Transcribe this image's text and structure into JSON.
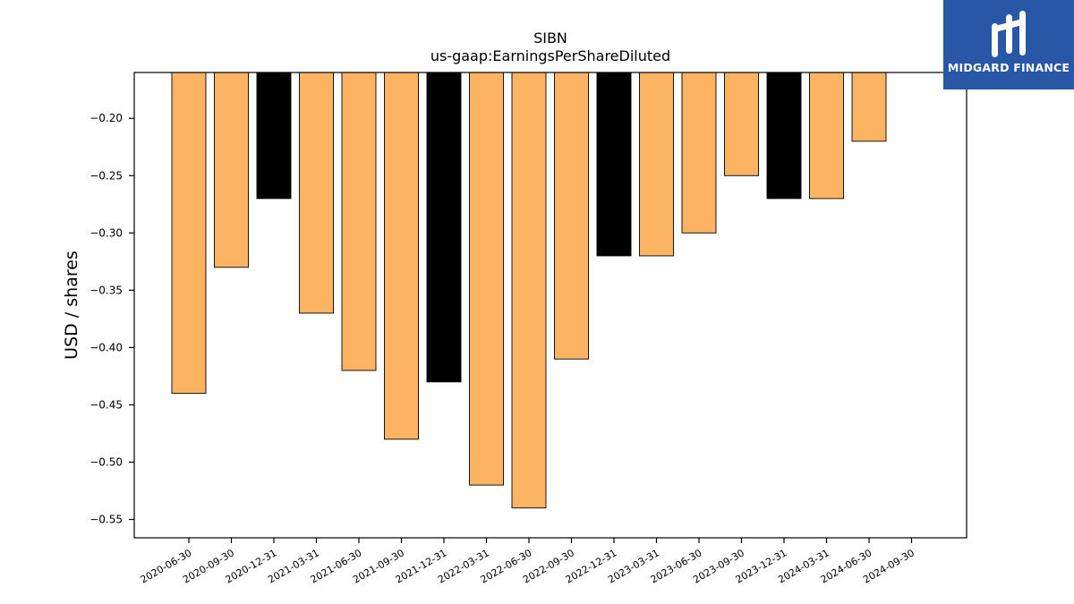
{
  "logo": {
    "text": "MIDGARD FINANCE",
    "color": "#2857a7"
  },
  "chart_data": {
    "type": "bar",
    "title": "SIBN",
    "subtitle": "us-gaap:EarningsPerShareDiluted",
    "xlabel": "",
    "ylabel": "USD / shares",
    "categories": [
      "2020-06-30",
      "2020-09-30",
      "2020-12-31",
      "2021-03-31",
      "2021-06-30",
      "2021-09-30",
      "2021-12-31",
      "2022-03-31",
      "2022-06-30",
      "2022-09-30",
      "2022-12-31",
      "2023-03-31",
      "2023-06-30",
      "2023-09-30",
      "2023-12-31",
      "2024-03-31",
      "2024-06-30",
      "2024-09-30"
    ],
    "values": [
      -0.44,
      -0.33,
      -0.27,
      -0.37,
      -0.42,
      -0.48,
      -0.43,
      -0.52,
      -0.54,
      -0.41,
      -0.32,
      -0.32,
      -0.3,
      -0.25,
      -0.27,
      -0.27,
      -0.22,
      -0.16
    ],
    "colors": [
      "#fdb462",
      "#fdb462",
      "#000000",
      "#fdb462",
      "#fdb462",
      "#fdb462",
      "#000000",
      "#fdb462",
      "#fdb462",
      "#fdb462",
      "#000000",
      "#fdb462",
      "#fdb462",
      "#fdb462",
      "#000000",
      "#fdb462",
      "#fdb462",
      "#fdb462"
    ],
    "ylim": [
      -0.566,
      -0.16
    ],
    "yticks": [
      -0.2,
      -0.25,
      -0.3,
      -0.35,
      -0.4,
      -0.45,
      -0.5,
      -0.55
    ],
    "ytick_labels": [
      "−0.20",
      "−0.25",
      "−0.30",
      "−0.35",
      "−0.40",
      "−0.45",
      "−0.50",
      "−0.55"
    ],
    "grid": false
  }
}
